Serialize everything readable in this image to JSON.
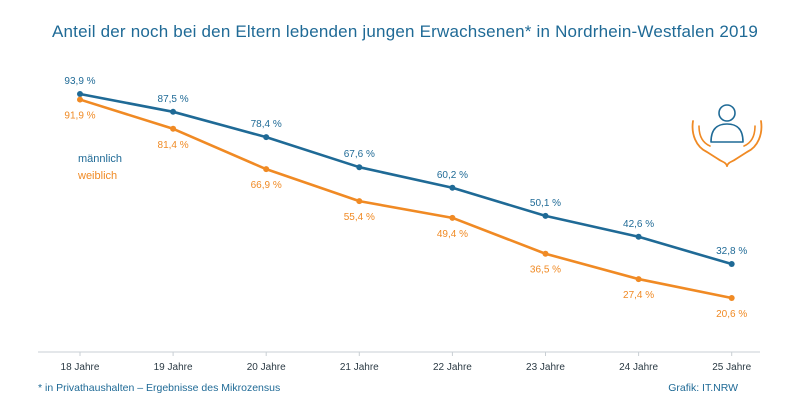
{
  "colors": {
    "male": "#1f6a96",
    "female": "#f08a24",
    "title": "#1f6a96"
  },
  "footnote": "* in Privathaushalten – Ergebnisse des Mikrozensus",
  "credit": "Grafik: IT.NRW",
  "icon": "person-in-hands-icon",
  "chart_data": {
    "type": "line",
    "title": "Anteil der noch bei den Eltern lebenden jungen Erwachsenen* in Nordrhein-Westfalen 2019",
    "categories": [
      "18 Jahre",
      "19 Jahre",
      "20 Jahre",
      "21 Jahre",
      "22 Jahre",
      "23 Jahre",
      "24 Jahre",
      "25 Jahre"
    ],
    "series": [
      {
        "name": "männlich",
        "values": [
          93.9,
          87.5,
          78.4,
          67.6,
          60.2,
          50.1,
          42.6,
          32.8
        ],
        "labels": [
          "93,9 %",
          "87,5 %",
          "78,4 %",
          "67,6 %",
          "60,2 %",
          "50,1 %",
          "42,6 %",
          "32,8 %"
        ]
      },
      {
        "name": "weiblich",
        "values": [
          91.9,
          81.4,
          66.9,
          55.4,
          49.4,
          36.5,
          27.4,
          20.6
        ],
        "labels": [
          "91,9 %",
          "81,4 %",
          "66,9 %",
          "55,4 %",
          "49,4 %",
          "36,5 %",
          "27,4 %",
          "20,6 %"
        ]
      }
    ],
    "grid": false,
    "legend": "left"
  }
}
